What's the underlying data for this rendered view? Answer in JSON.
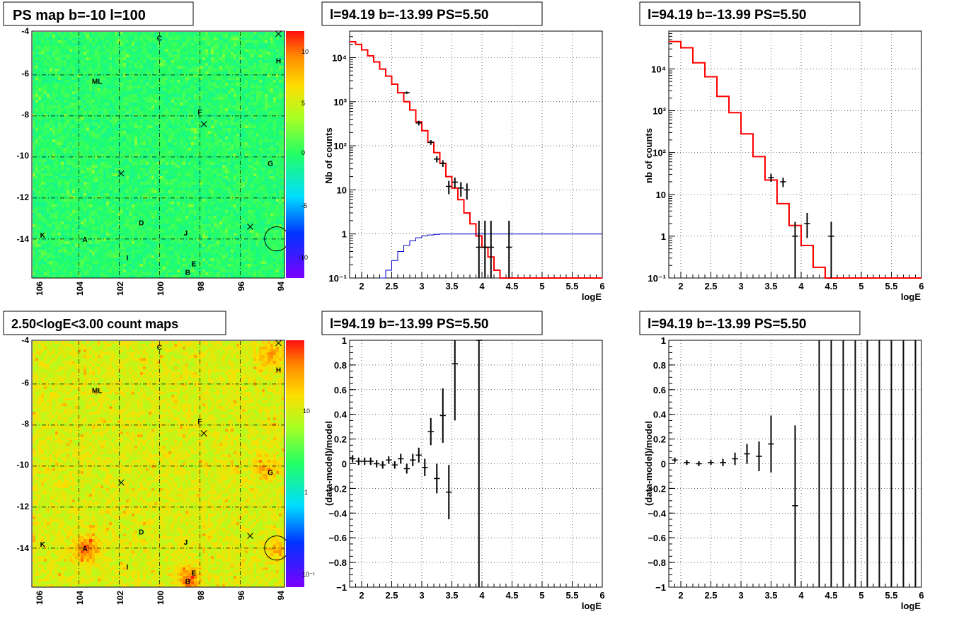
{
  "page": {
    "width": 1348,
    "height": 875
  },
  "colors": {
    "model_line": "#ff0000",
    "acceptance_line": "#0000cc",
    "data_points": "#000000",
    "grid": "#000000",
    "map_green": "#33ff44",
    "map_orange": "#ffa030",
    "circle": "#000000"
  },
  "panels": {
    "ps_map": {
      "title": "PS map b=-10 l=100",
      "x_ticks": [
        "106",
        "104",
        "102",
        "100",
        "98",
        "96",
        "94"
      ],
      "y_ticks": [
        "-4",
        "-6",
        "-8",
        "-10",
        "-12",
        "-14"
      ],
      "colorbar_ticks": [
        "10",
        "5",
        "0",
        "-5",
        "-10"
      ],
      "colorbar_scale": "linear",
      "palette": "rainbow",
      "background_level": 0
    },
    "count_map": {
      "title": "2.50<logE<3.00 count maps",
      "x_ticks": [
        "106",
        "104",
        "102",
        "100",
        "98",
        "96",
        "94"
      ],
      "y_ticks": [
        "-4",
        "-6",
        "-8",
        "-10",
        "-12",
        "-14"
      ],
      "colorbar_ticks": [
        "10",
        "1",
        "10⁻¹"
      ],
      "colorbar_scale": "log",
      "palette": "rainbow",
      "background_level": 5
    }
  },
  "map_sources": [
    {
      "label": "C",
      "l": 100.0,
      "b": -4.2
    },
    {
      "label": "H",
      "l": 94.1,
      "b": -5.3
    },
    {
      "label": "ML",
      "l": 103.1,
      "b": -6.3
    },
    {
      "label": "F",
      "l": 98.0,
      "b": -7.8
    },
    {
      "label": "G",
      "l": 94.5,
      "b": -10.3
    },
    {
      "label": "D",
      "l": 100.9,
      "b": -13.2
    },
    {
      "label": "J",
      "l": 98.7,
      "b": -13.7
    },
    {
      "label": "K",
      "l": 105.8,
      "b": -13.8
    },
    {
      "label": "A",
      "l": 103.7,
      "b": -14.0
    },
    {
      "label": "I",
      "l": 101.6,
      "b": -14.9
    },
    {
      "label": "E",
      "l": 98.3,
      "b": -15.2
    },
    {
      "label": "B",
      "l": 98.6,
      "b": -15.6
    }
  ],
  "map_crosses": [
    {
      "l": 94.1,
      "b": -4.0
    },
    {
      "l": 97.8,
      "b": -8.4
    },
    {
      "l": 101.9,
      "b": -10.8
    },
    {
      "l": 95.5,
      "b": -13.4
    }
  ],
  "map_circle": {
    "l": 94.19,
    "b": -13.99,
    "r_deg": 0.6
  },
  "map_hotspots": [
    {
      "l": 103.7,
      "b": -14.0,
      "w": 1.0
    },
    {
      "l": 98.6,
      "b": -15.5,
      "w": 0.9
    },
    {
      "l": 94.5,
      "b": -4.5,
      "w": 0.7
    },
    {
      "l": 94.8,
      "b": -10.0,
      "w": 0.5
    },
    {
      "l": 94.2,
      "b": -14.0,
      "w": 0.5
    }
  ],
  "chart_data": [
    {
      "type": "line",
      "title": "l=94.19 b=-13.99 PS=5.50",
      "xlabel": "logE",
      "ylabel": "Nb of counts",
      "log_y": true,
      "xlim": [
        1.8,
        6.0
      ],
      "ylim": [
        0.1,
        40000
      ],
      "x_ticks": [
        "2",
        "2.5",
        "3",
        "3.5",
        "4",
        "4.5",
        "5",
        "5.5",
        "6"
      ],
      "y_ticks": [
        "10⁻¹",
        "1",
        "10",
        "10²",
        "10³",
        "10⁴"
      ],
      "grid": true,
      "series": [
        {
          "role": "model",
          "style": "step",
          "edges": [
            1.8,
            1.9,
            2.0,
            2.1,
            2.2,
            2.3,
            2.4,
            2.5,
            2.6,
            2.7,
            2.8,
            2.9,
            3.0,
            3.1,
            3.2,
            3.3,
            3.4,
            3.5,
            3.6,
            3.7,
            3.8,
            3.9,
            4.0,
            4.1,
            4.2,
            4.3,
            4.4,
            4.5,
            4.6,
            4.7,
            4.8,
            4.9,
            5.0,
            5.1,
            5.2,
            5.3,
            5.4,
            5.5,
            5.6,
            5.7,
            5.8,
            5.9,
            6.0
          ],
          "values": [
            23000,
            20000,
            15000,
            11000,
            8000,
            5500,
            3800,
            2500,
            1600,
            1000,
            650,
            350,
            220,
            120,
            70,
            40,
            20,
            11,
            6,
            3,
            1.7,
            0.9,
            0.5,
            0.3,
            0.15,
            0.1,
            0.1,
            0.1,
            0.1,
            0.1,
            0.1,
            0.1,
            0.1,
            0.1,
            0.1,
            0.1,
            0.1,
            0.1,
            0.1,
            0.1,
            0.1,
            0.1
          ]
        },
        {
          "role": "acceptance",
          "style": "step",
          "edges": [
            2.3,
            2.4,
            2.5,
            2.6,
            2.7,
            2.8,
            2.9,
            3.0,
            3.1,
            3.2,
            3.3,
            3.4,
            3.5,
            3.6,
            3.7,
            3.8,
            3.9,
            4.0,
            4.1,
            4.2,
            4.3,
            4.4,
            4.5,
            4.6,
            4.7,
            4.8,
            4.9,
            5.0,
            5.1,
            5.2,
            5.3,
            5.4,
            5.5,
            5.6,
            5.7,
            5.8,
            5.9,
            6.0
          ],
          "values": [
            0.1,
            0.15,
            0.25,
            0.4,
            0.55,
            0.7,
            0.82,
            0.9,
            0.95,
            0.98,
            1,
            1,
            1,
            1,
            1,
            1,
            1,
            1,
            1,
            1,
            1,
            1,
            1,
            1,
            1,
            1,
            1,
            1,
            1,
            1,
            1,
            1,
            1,
            1,
            1,
            1,
            1
          ]
        },
        {
          "role": "data",
          "style": "points",
          "x": [
            2.75,
            2.95,
            3.15,
            3.25,
            3.35,
            3.45,
            3.55,
            3.65,
            3.75,
            3.95,
            4.05,
            4.15,
            4.45
          ],
          "y": [
            1600,
            330,
            120,
            50,
            40,
            12,
            15,
            11,
            10,
            0.5,
            0.5,
            0.5,
            0.5
          ],
          "err_up": [
            1700,
            370,
            135,
            58,
            47,
            16,
            19,
            15,
            14,
            2,
            2,
            2,
            2
          ],
          "err_down": [
            1500,
            290,
            105,
            42,
            33,
            8,
            11,
            7,
            6,
            0.1,
            0.1,
            0.1,
            0.1
          ]
        }
      ]
    },
    {
      "type": "line",
      "title": "l=94.19 b=-13.99 PS=5.50",
      "xlabel": "logE",
      "ylabel": "nb of counts",
      "log_y": true,
      "xlim": [
        1.8,
        6.0
      ],
      "ylim": [
        0.1,
        80000
      ],
      "x_ticks": [
        "2",
        "2.5",
        "3",
        "3.5",
        "4",
        "4.5",
        "5",
        "5.5",
        "6"
      ],
      "y_ticks": [
        "10⁻¹",
        "1",
        "10",
        "10²",
        "10³",
        "10⁴"
      ],
      "grid": true,
      "series": [
        {
          "role": "model",
          "style": "step",
          "edges": [
            1.8,
            2.0,
            2.2,
            2.4,
            2.6,
            2.8,
            3.0,
            3.2,
            3.4,
            3.6,
            3.8,
            4.0,
            4.2,
            4.4,
            4.6,
            4.8,
            5.0,
            5.2,
            5.4,
            5.6,
            5.8,
            6.0
          ],
          "values": [
            45000,
            32000,
            14000,
            6500,
            2200,
            900,
            280,
            80,
            22,
            6,
            1.8,
            0.6,
            0.18,
            0.1,
            0.1,
            0.1,
            0.1,
            0.1,
            0.1,
            0.1,
            0.1
          ]
        },
        {
          "role": "data",
          "style": "points",
          "x": [
            3.5,
            3.7,
            3.9,
            4.1,
            4.5
          ],
          "y": [
            25,
            20,
            1,
            2,
            1
          ],
          "err_up": [
            31,
            25,
            2.2,
            3.6,
            2.2
          ],
          "err_down": [
            20,
            15,
            0.1,
            0.9,
            0.1
          ]
        }
      ]
    },
    {
      "type": "scatter",
      "title": "l=94.19 b=-13.99 PS=5.50",
      "xlabel": "logE",
      "ylabel": "(data-model)/model",
      "xlim": [
        1.8,
        6.0
      ],
      "ylim": [
        -1,
        1
      ],
      "x_ticks": [
        "2",
        "2.5",
        "3",
        "3.5",
        "4",
        "4.5",
        "5",
        "5.5",
        "6"
      ],
      "y_ticks": [
        "1",
        "0.8",
        "0.6",
        "0.4",
        "0.2",
        "0",
        "−0.2",
        "−0.4",
        "−0.6",
        "−0.8",
        "−1"
      ],
      "grid": true,
      "series": [
        {
          "role": "data",
          "style": "points",
          "x": [
            1.85,
            1.95,
            2.05,
            2.15,
            2.25,
            2.35,
            2.45,
            2.55,
            2.65,
            2.75,
            2.85,
            2.95,
            3.05,
            3.15,
            3.25,
            3.35,
            3.45,
            3.55,
            3.95
          ],
          "y": [
            0.04,
            0.02,
            0.02,
            0.02,
            0.0,
            -0.01,
            0.03,
            -0.01,
            0.04,
            -0.04,
            0.03,
            0.07,
            -0.03,
            0.26,
            -0.12,
            0.39,
            -0.23,
            0.81,
            1.0
          ],
          "err": [
            0.03,
            0.03,
            0.03,
            0.03,
            0.03,
            0.03,
            0.03,
            0.03,
            0.04,
            0.04,
            0.05,
            0.06,
            0.07,
            0.11,
            0.12,
            0.22,
            0.22,
            0.46,
            2.0
          ]
        }
      ]
    },
    {
      "type": "scatter",
      "title": "l=94.19 b=-13.99 PS=5.50",
      "xlabel": "logE",
      "ylabel": "(data-model)/model",
      "xlim": [
        1.8,
        6.0
      ],
      "ylim": [
        -1,
        1
      ],
      "x_ticks": [
        "2",
        "2.5",
        "3",
        "3.5",
        "4",
        "4.5",
        "5",
        "5.5",
        "6"
      ],
      "y_ticks": [
        "1",
        "0.8",
        "0.6",
        "0.4",
        "0.2",
        "0",
        "−0.2",
        "−0.4",
        "−0.6",
        "−0.8",
        "−1"
      ],
      "grid": true,
      "series": [
        {
          "role": "data",
          "style": "points",
          "x": [
            1.9,
            2.1,
            2.3,
            2.5,
            2.7,
            2.9,
            3.1,
            3.3,
            3.5,
            3.9
          ],
          "y": [
            0.03,
            0.01,
            0.0,
            0.01,
            0.01,
            0.04,
            0.08,
            0.06,
            0.16,
            -0.34
          ],
          "err": [
            0.02,
            0.02,
            0.02,
            0.02,
            0.03,
            0.05,
            0.08,
            0.12,
            0.23,
            0.65
          ]
        },
        {
          "role": "empty_bins",
          "style": "errorbars",
          "x": [
            4.3,
            4.5,
            4.7,
            4.9,
            5.1,
            5.3,
            5.5,
            5.7,
            5.9
          ],
          "y": [
            0,
            0,
            0,
            0,
            0,
            0,
            0,
            0,
            0
          ],
          "err": [
            2,
            2,
            2,
            2,
            2,
            2,
            2,
            2,
            2
          ]
        }
      ]
    }
  ]
}
